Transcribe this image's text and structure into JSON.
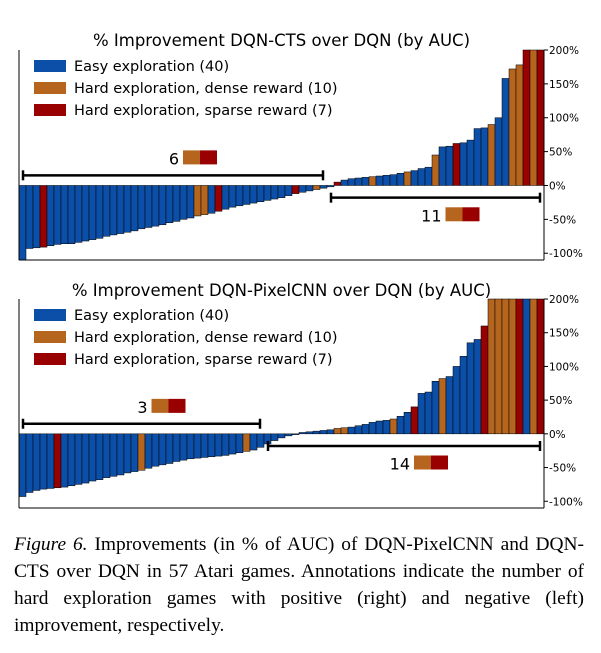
{
  "chart_data": [
    {
      "type": "bar",
      "title": "% Improvement DQN-CTS over DQN (by AUC)",
      "ylim": [
        -110,
        200
      ],
      "yticks": [
        -100,
        -50,
        0,
        50,
        100,
        150,
        200
      ],
      "ytick_labels": [
        "-100%",
        "-50%",
        "0%",
        "50%",
        "100%",
        "150%",
        "200%"
      ],
      "grid": false,
      "legend_position": "top-left",
      "legend": [
        {
          "key": "easy",
          "label": "Easy exploration (40)",
          "color": "#0b4fa8"
        },
        {
          "key": "dense",
          "label": "Hard exploration, dense reward (10)",
          "color": "#b5651d"
        },
        {
          "key": "sparse",
          "label": "Hard exploration, sparse reward (7)",
          "color": "#990000"
        }
      ],
      "values": [
        -110,
        -93,
        -92,
        -91,
        -89,
        -87,
        -86,
        -86,
        -84,
        -82,
        -80,
        -78,
        -75,
        -73,
        -71,
        -69,
        -67,
        -64,
        -62,
        -60,
        -58,
        -55,
        -53,
        -50,
        -48,
        -45,
        -43,
        -41,
        -38,
        -35,
        -32,
        -30,
        -28,
        -26,
        -24,
        -22,
        -20,
        -18,
        -15,
        -12,
        -10,
        -8,
        -6,
        -4,
        -2,
        5,
        8,
        10,
        11,
        12,
        13,
        14,
        15,
        16,
        18,
        20,
        22,
        25,
        27,
        45,
        57,
        58,
        62,
        63,
        67,
        84,
        85,
        90,
        100,
        158,
        172,
        178,
        200,
        200,
        200
      ],
      "categories": [
        "easy",
        "easy",
        "easy",
        "sparse",
        "easy",
        "easy",
        "easy",
        "easy",
        "easy",
        "easy",
        "easy",
        "easy",
        "easy",
        "easy",
        "easy",
        "easy",
        "easy",
        "easy",
        "easy",
        "easy",
        "easy",
        "easy",
        "easy",
        "easy",
        "easy",
        "dense",
        "dense",
        "easy",
        "sparse",
        "easy",
        "easy",
        "easy",
        "easy",
        "easy",
        "easy",
        "easy",
        "easy",
        "easy",
        "easy",
        "sparse",
        "easy",
        "easy",
        "dense",
        "easy",
        "easy",
        "sparse",
        "easy",
        "easy",
        "easy",
        "easy",
        "dense",
        "easy",
        "easy",
        "easy",
        "easy",
        "dense",
        "easy",
        "easy",
        "easy",
        "dense",
        "easy",
        "easy",
        "sparse",
        "easy",
        "easy",
        "easy",
        "easy",
        "dense",
        "easy",
        "easy",
        "dense",
        "dense",
        "sparse",
        "dense",
        "sparse"
      ],
      "annotations": [
        {
          "label": "6",
          "side": "left",
          "x_from": 0,
          "x_to": 43,
          "y": 15,
          "bar_y": 15,
          "label_y": 40
        },
        {
          "label": "11",
          "side": "right",
          "x_from": 44,
          "x_to": 74,
          "y": -18,
          "bar_y": -18,
          "label_y": -44
        }
      ]
    },
    {
      "type": "bar",
      "title": "% Improvement DQN-PixelCNN over DQN (by AUC)",
      "ylim": [
        -110,
        200
      ],
      "yticks": [
        -100,
        -50,
        0,
        50,
        100,
        150,
        200
      ],
      "ytick_labels": [
        "-100%",
        "-50%",
        "0%",
        "50%",
        "100%",
        "150%",
        "200%"
      ],
      "grid": false,
      "legend_position": "top-left",
      "legend": [
        {
          "key": "easy",
          "label": "Easy exploration (40)",
          "color": "#0b4fa8"
        },
        {
          "key": "dense",
          "label": "Hard exploration, dense reward (10)",
          "color": "#b5651d"
        },
        {
          "key": "sparse",
          "label": "Hard exploration, sparse reward (7)",
          "color": "#990000"
        }
      ],
      "values": [
        -93,
        -87,
        -84,
        -82,
        -81,
        -80,
        -79,
        -77,
        -75,
        -73,
        -70,
        -68,
        -65,
        -63,
        -61,
        -58,
        -56,
        -54,
        -51,
        -48,
        -46,
        -44,
        -41,
        -39,
        -37,
        -36,
        -35,
        -34,
        -33,
        -32,
        -30,
        -28,
        -26,
        -24,
        -20,
        -15,
        -10,
        -6,
        -3,
        -1,
        2,
        3,
        4,
        5,
        6,
        8,
        9,
        10,
        12,
        14,
        17,
        19,
        20,
        22,
        26,
        32,
        40,
        60,
        62,
        78,
        82,
        85,
        100,
        115,
        135,
        140,
        160,
        200,
        200,
        200,
        200,
        200,
        200,
        200,
        200
      ],
      "categories": [
        "easy",
        "easy",
        "easy",
        "easy",
        "easy",
        "sparse",
        "easy",
        "easy",
        "easy",
        "easy",
        "easy",
        "easy",
        "easy",
        "easy",
        "easy",
        "easy",
        "easy",
        "dense",
        "easy",
        "easy",
        "easy",
        "easy",
        "easy",
        "easy",
        "easy",
        "easy",
        "easy",
        "easy",
        "easy",
        "easy",
        "easy",
        "easy",
        "dense",
        "easy",
        "easy",
        "easy",
        "easy",
        "easy",
        "easy",
        "easy",
        "easy",
        "easy",
        "easy",
        "easy",
        "easy",
        "dense",
        "dense",
        "easy",
        "easy",
        "easy",
        "easy",
        "easy",
        "easy",
        "dense",
        "easy",
        "easy",
        "sparse",
        "easy",
        "easy",
        "easy",
        "dense",
        "easy",
        "easy",
        "easy",
        "easy",
        "easy",
        "sparse",
        "dense",
        "dense",
        "dense",
        "dense",
        "sparse",
        "easy",
        "dense",
        "sparse"
      ],
      "annotations": [
        {
          "label": "3",
          "side": "left",
          "x_from": 0,
          "x_to": 34,
          "y": 15,
          "bar_y": 15,
          "label_y": 40
        },
        {
          "label": "14",
          "side": "right",
          "x_from": 35,
          "x_to": 74,
          "y": -18,
          "bar_y": -18,
          "label_y": -44
        }
      ]
    }
  ],
  "caption": {
    "lead": "Figure 6.",
    "text": " Improvements (in % of AUC) of DQN-PixelCNN and DQN-CTS over DQN in 57 Atari games.  Annotations indicate the number of hard exploration games with positive (right) and negative (left) improvement, respectively."
  }
}
